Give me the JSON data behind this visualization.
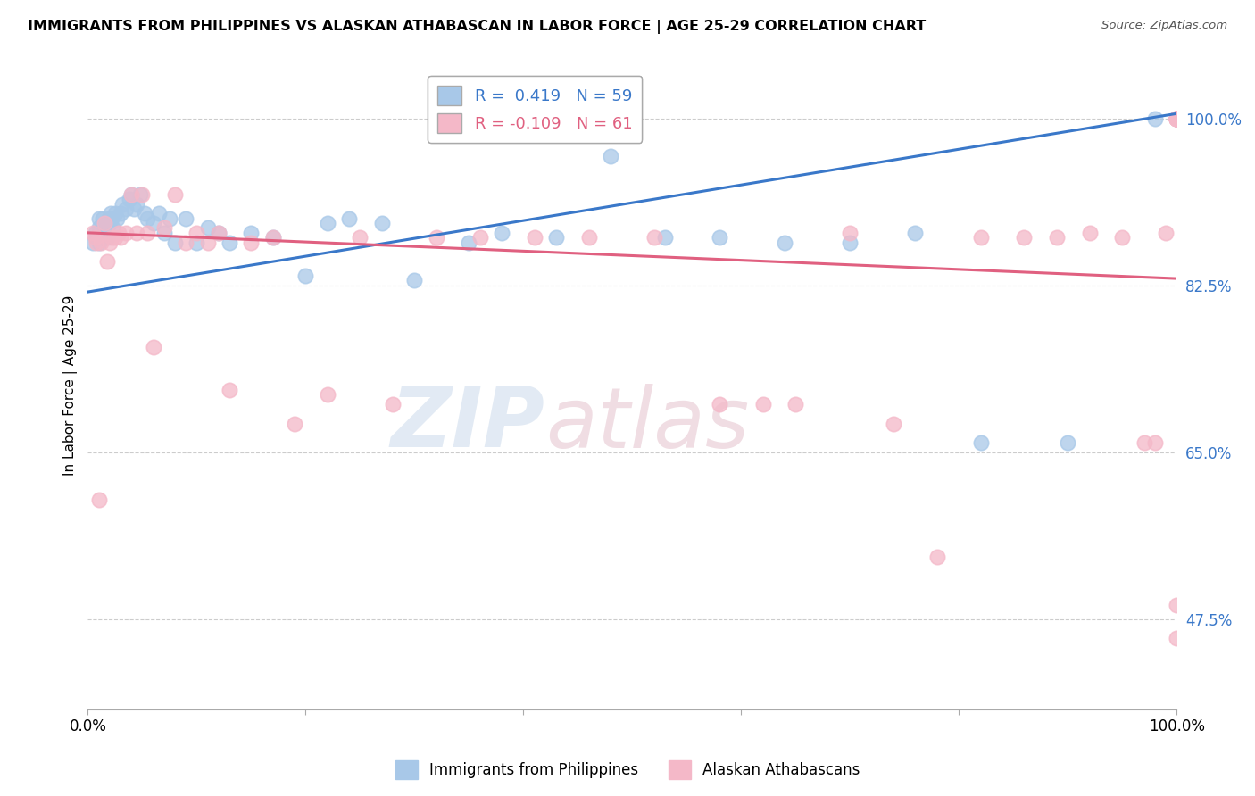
{
  "title": "IMMIGRANTS FROM PHILIPPINES VS ALASKAN ATHABASCAN IN LABOR FORCE | AGE 25-29 CORRELATION CHART",
  "source": "Source: ZipAtlas.com",
  "ylabel": "In Labor Force | Age 25-29",
  "xlim": [
    0.0,
    1.0
  ],
  "ylim": [
    0.38,
    1.06
  ],
  "yticks": [
    0.475,
    0.65,
    0.825,
    1.0
  ],
  "ytick_labels": [
    "47.5%",
    "65.0%",
    "82.5%",
    "100.0%"
  ],
  "xticks": [
    0.0,
    0.2,
    0.4,
    0.6,
    0.8,
    1.0
  ],
  "xtick_labels": [
    "0.0%",
    "",
    "",
    "",
    "",
    "100.0%"
  ],
  "blue_R": 0.419,
  "blue_N": 59,
  "pink_R": -0.109,
  "pink_N": 61,
  "blue_color": "#a8c8e8",
  "pink_color": "#f4b8c8",
  "blue_line_color": "#3a78c9",
  "pink_line_color": "#e06080",
  "legend_label_blue": "Immigrants from Philippines",
  "legend_label_pink": "Alaskan Athabascans",
  "background_color": "#ffffff",
  "blue_line_x0": 0.0,
  "blue_line_y0": 0.818,
  "blue_line_x1": 1.0,
  "blue_line_y1": 1.005,
  "pink_line_x0": 0.0,
  "pink_line_y0": 0.88,
  "pink_line_x1": 1.0,
  "pink_line_y1": 0.832,
  "blue_points_x": [
    0.005,
    0.007,
    0.008,
    0.01,
    0.01,
    0.01,
    0.012,
    0.013,
    0.014,
    0.015,
    0.016,
    0.017,
    0.018,
    0.019,
    0.02,
    0.021,
    0.022,
    0.023,
    0.025,
    0.027,
    0.03,
    0.032,
    0.035,
    0.038,
    0.04,
    0.042,
    0.045,
    0.048,
    0.052,
    0.055,
    0.06,
    0.065,
    0.07,
    0.075,
    0.08,
    0.09,
    0.1,
    0.11,
    0.12,
    0.13,
    0.15,
    0.17,
    0.2,
    0.22,
    0.24,
    0.27,
    0.3,
    0.35,
    0.38,
    0.43,
    0.48,
    0.53,
    0.58,
    0.64,
    0.7,
    0.76,
    0.82,
    0.9,
    0.98
  ],
  "blue_points_y": [
    0.87,
    0.88,
    0.875,
    0.87,
    0.885,
    0.895,
    0.88,
    0.875,
    0.895,
    0.88,
    0.89,
    0.88,
    0.875,
    0.895,
    0.89,
    0.9,
    0.895,
    0.885,
    0.9,
    0.895,
    0.9,
    0.91,
    0.905,
    0.915,
    0.92,
    0.905,
    0.91,
    0.92,
    0.9,
    0.895,
    0.89,
    0.9,
    0.88,
    0.895,
    0.87,
    0.895,
    0.87,
    0.885,
    0.88,
    0.87,
    0.88,
    0.875,
    0.835,
    0.89,
    0.895,
    0.89,
    0.83,
    0.87,
    0.88,
    0.875,
    0.96,
    0.875,
    0.875,
    0.87,
    0.87,
    0.88,
    0.66,
    0.66,
    1.0
  ],
  "pink_points_x": [
    0.005,
    0.007,
    0.008,
    0.01,
    0.012,
    0.015,
    0.018,
    0.02,
    0.022,
    0.025,
    0.028,
    0.03,
    0.035,
    0.04,
    0.045,
    0.05,
    0.055,
    0.06,
    0.07,
    0.08,
    0.09,
    0.1,
    0.11,
    0.12,
    0.13,
    0.15,
    0.17,
    0.19,
    0.22,
    0.25,
    0.28,
    0.32,
    0.36,
    0.41,
    0.46,
    0.52,
    0.58,
    0.62,
    0.65,
    0.7,
    0.74,
    0.78,
    0.82,
    0.86,
    0.89,
    0.92,
    0.95,
    0.97,
    0.98,
    0.99,
    1.0,
    1.0,
    1.0,
    1.0,
    1.0,
    1.0,
    1.0,
    1.0,
    1.0,
    1.0,
    1.0
  ],
  "pink_points_y": [
    0.88,
    0.875,
    0.87,
    0.6,
    0.87,
    0.89,
    0.85,
    0.87,
    0.875,
    0.875,
    0.88,
    0.875,
    0.88,
    0.92,
    0.88,
    0.92,
    0.88,
    0.76,
    0.885,
    0.92,
    0.87,
    0.88,
    0.87,
    0.88,
    0.715,
    0.87,
    0.875,
    0.68,
    0.71,
    0.875,
    0.7,
    0.875,
    0.875,
    0.875,
    0.875,
    0.875,
    0.7,
    0.7,
    0.7,
    0.88,
    0.68,
    0.54,
    0.875,
    0.875,
    0.875,
    0.88,
    0.875,
    0.66,
    0.66,
    0.88,
    1.0,
    1.0,
    1.0,
    1.0,
    1.0,
    1.0,
    1.0,
    1.0,
    1.0,
    0.49,
    0.455
  ]
}
